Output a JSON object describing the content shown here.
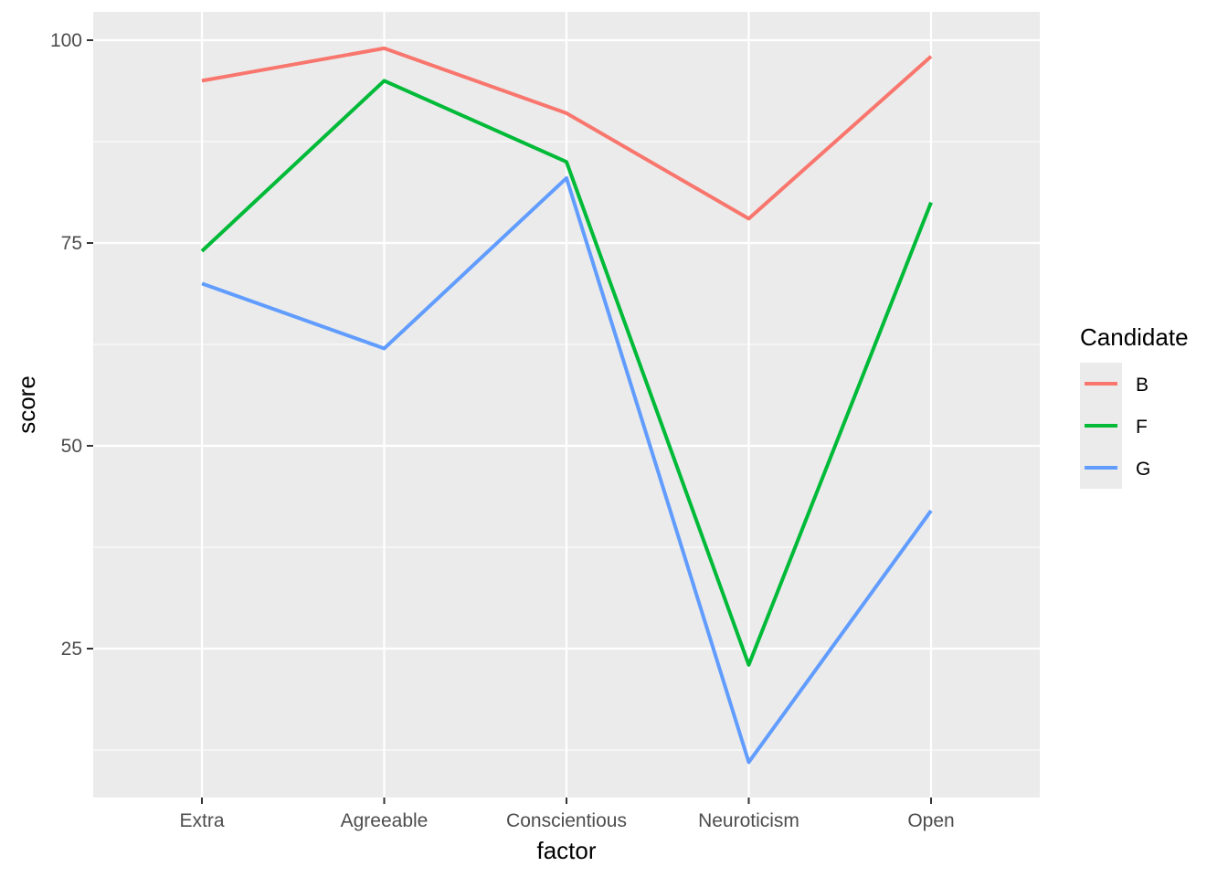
{
  "chart_data": {
    "type": "line",
    "xlabel": "factor",
    "ylabel": "score",
    "categories": [
      "Extra",
      "Agreeable",
      "Conscientious",
      "Neuroticism",
      "Open"
    ],
    "y_ticks": [
      25,
      50,
      75,
      100
    ],
    "y_tick_labels": [
      "25",
      "50",
      "75",
      "100"
    ],
    "ylim": [
      7,
      104
    ],
    "grid": true,
    "legend": {
      "title": "Candidate",
      "position": "right"
    },
    "series": [
      {
        "name": "B",
        "color": "#F8766D",
        "values": [
          95,
          99,
          91,
          78,
          98
        ]
      },
      {
        "name": "F",
        "color": "#00BA38",
        "values": [
          74,
          95,
          85,
          23,
          80
        ]
      },
      {
        "name": "G",
        "color": "#619CFF",
        "values": [
          70,
          62,
          83,
          11,
          42
        ]
      }
    ]
  }
}
